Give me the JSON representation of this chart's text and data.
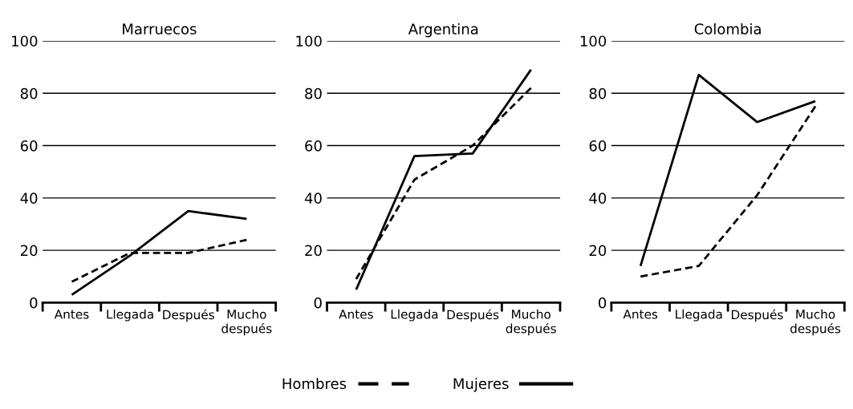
{
  "chart_data": [
    {
      "type": "line",
      "title": "Marruecos",
      "categories": [
        "Antes",
        "Llegada",
        "Después",
        "Mucho\ndespués"
      ],
      "ylim": [
        0,
        100
      ],
      "yticks": [
        0,
        20,
        40,
        60,
        80,
        100
      ],
      "grid": "y",
      "legend": "bottom",
      "series": [
        {
          "name": "Hombres",
          "color": "#000000",
          "line_style": "dashed",
          "values": [
            8,
            19,
            19,
            24
          ]
        },
        {
          "name": "Mujeres",
          "color": "#000000",
          "line_style": "solid",
          "values": [
            3,
            18,
            35,
            32
          ]
        }
      ]
    },
    {
      "type": "line",
      "title": "Argentina",
      "categories": [
        "Antes",
        "Llegada",
        "Después",
        "Mucho\ndespués"
      ],
      "ylim": [
        0,
        100
      ],
      "yticks": [
        0,
        20,
        40,
        60,
        80,
        100
      ],
      "grid": "y",
      "series": [
        {
          "color": "#000000",
          "line_style": "dashed",
          "values": [
            9,
            47,
            60,
            82
          ]
        },
        {
          "color": "#000000",
          "line_style": "solid",
          "values": [
            5,
            56,
            57,
            89
          ]
        }
      ]
    },
    {
      "type": "line",
      "title": "Colombia",
      "categories": [
        "Antes",
        "Llegada",
        "Después",
        "Mucho\ndespués"
      ],
      "ylim": [
        0,
        100
      ],
      "yticks": [
        0,
        20,
        40,
        60,
        80,
        100
      ],
      "grid": "y",
      "series": [
        {
          "color": "#000000",
          "line_style": "dashed",
          "values": [
            10,
            14,
            41,
            75
          ]
        },
        {
          "color": "#000000",
          "line_style": "solid",
          "values": [
            14,
            87,
            69,
            77
          ]
        }
      ]
    }
  ]
}
